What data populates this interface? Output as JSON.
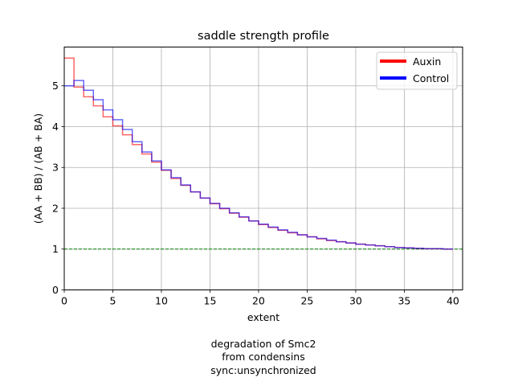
{
  "chart_data": {
    "type": "line",
    "step": true,
    "title": "saddle strength profile",
    "xlabel": "extent",
    "ylabel": "(AA + BB) / (AB + BA)",
    "xlim": [
      0,
      41
    ],
    "ylim": [
      0,
      5.95
    ],
    "xticks": [
      0,
      5,
      10,
      15,
      20,
      25,
      30,
      35,
      40
    ],
    "yticks": [
      0,
      1,
      2,
      3,
      4,
      5
    ],
    "grid": true,
    "legend_position": "top-right",
    "reference_line": {
      "y": 1,
      "color": "#008000",
      "style": "dashed"
    },
    "x": [
      0,
      1,
      2,
      3,
      4,
      5,
      6,
      7,
      8,
      9,
      10,
      11,
      12,
      13,
      14,
      15,
      16,
      17,
      18,
      19,
      20,
      21,
      22,
      23,
      24,
      25,
      26,
      27,
      28,
      29,
      30,
      31,
      32,
      33,
      34,
      35,
      36,
      37,
      38,
      39
    ],
    "series": [
      {
        "name": "Auxin",
        "color": "#ff0000",
        "values": [
          5.68,
          4.97,
          4.73,
          4.51,
          4.24,
          4.02,
          3.8,
          3.56,
          3.33,
          3.13,
          2.93,
          2.73,
          2.56,
          2.4,
          2.25,
          2.11,
          1.99,
          1.88,
          1.78,
          1.69,
          1.6,
          1.53,
          1.46,
          1.4,
          1.35,
          1.3,
          1.25,
          1.21,
          1.18,
          1.15,
          1.12,
          1.1,
          1.08,
          1.06,
          1.04,
          1.03,
          1.02,
          1.01,
          1.01,
          1.0
        ]
      },
      {
        "name": "Control",
        "color": "#0000ff",
        "values": [
          5.0,
          5.13,
          4.89,
          4.66,
          4.41,
          4.17,
          3.93,
          3.63,
          3.38,
          3.16,
          2.94,
          2.75,
          2.57,
          2.4,
          2.25,
          2.12,
          2.0,
          1.89,
          1.79,
          1.69,
          1.61,
          1.54,
          1.47,
          1.41,
          1.35,
          1.3,
          1.26,
          1.22,
          1.18,
          1.15,
          1.12,
          1.1,
          1.08,
          1.06,
          1.04,
          1.03,
          1.02,
          1.01,
          1.01,
          1.0
        ]
      }
    ]
  },
  "caption": {
    "line1": "degradation of Smc2",
    "line2": "from condensins",
    "line3": "sync:unsynchronized"
  }
}
